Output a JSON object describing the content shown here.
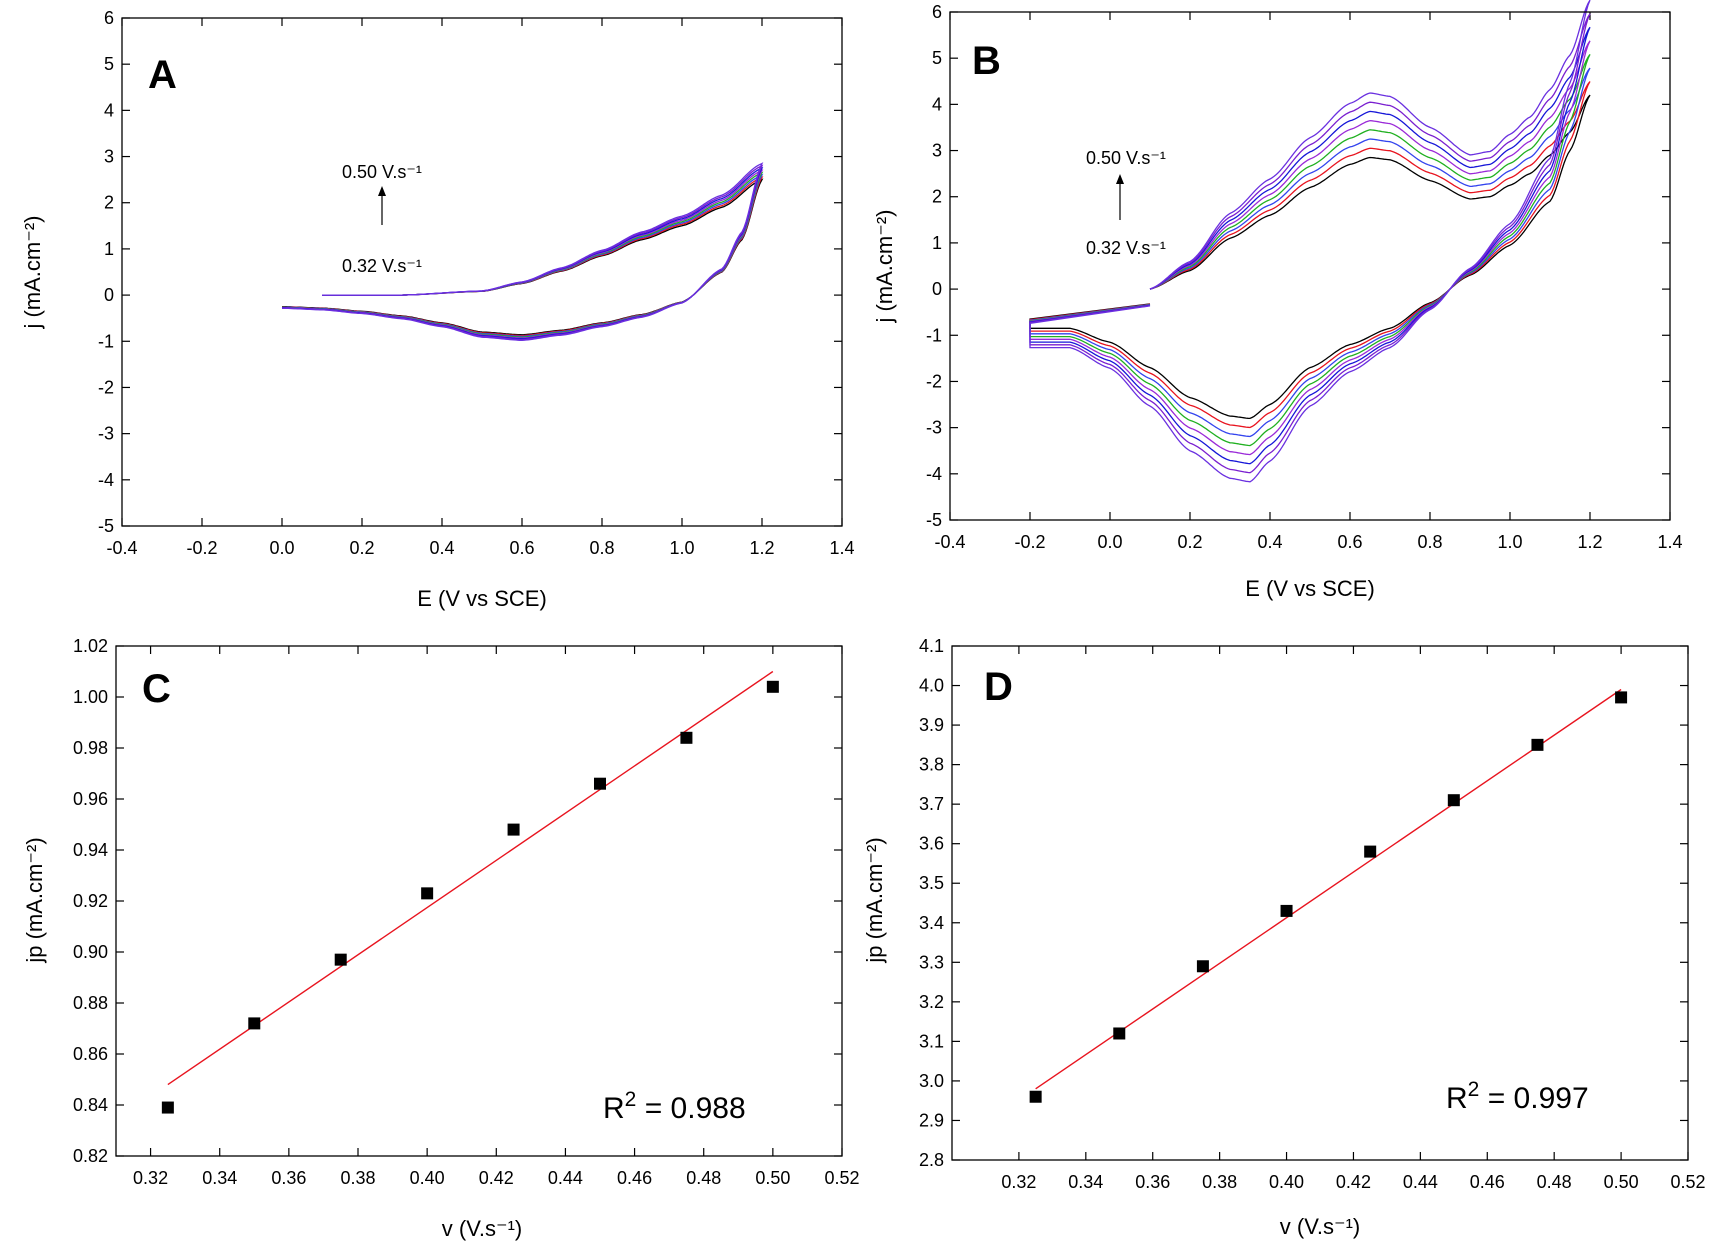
{
  "chart_data": [
    {
      "id": "A",
      "type": "line",
      "panel_label": "A",
      "xlabel": "E (V vs SCE)",
      "ylabel": "j (mA.cm⁻²)",
      "xlim": [
        -0.4,
        1.4
      ],
      "ylim": [
        -5,
        6
      ],
      "xticks": [
        -0.4,
        -0.2,
        0.0,
        0.2,
        0.4,
        0.6,
        0.8,
        1.0,
        1.2,
        1.4
      ],
      "yticks": [
        -5,
        -4,
        -3,
        -2,
        -1,
        0,
        1,
        2,
        3,
        4,
        5,
        6
      ],
      "xtick_decimals": 1,
      "ytick_decimals": 0,
      "annotation_top": "0.50 V.s⁻¹",
      "annotation_bottom": "0.32 V.s⁻¹",
      "series_colors": [
        "#000000",
        "#e8141f",
        "#3344ee",
        "#20b020",
        "#9a2ad8",
        "#1616d8",
        "#7a1fd0",
        "#6a30e0"
      ],
      "voltammogram": {
        "start": 0.1,
        "vertex": 1.2,
        "end": 0.0,
        "anodic": [
          [
            0.1,
            0.0
          ],
          [
            0.3,
            0.0
          ],
          [
            0.5,
            0.08
          ],
          [
            0.6,
            0.25
          ],
          [
            0.7,
            0.52
          ],
          [
            0.8,
            0.85
          ],
          [
            0.9,
            1.2
          ],
          [
            1.0,
            1.5
          ],
          [
            1.1,
            1.9
          ],
          [
            1.2,
            2.5
          ]
        ],
        "cathodic": [
          [
            1.2,
            2.5
          ],
          [
            1.15,
            1.2
          ],
          [
            1.1,
            0.5
          ],
          [
            1.0,
            -0.15
          ],
          [
            0.9,
            -0.42
          ],
          [
            0.8,
            -0.6
          ],
          [
            0.7,
            -0.76
          ],
          [
            0.6,
            -0.86
          ],
          [
            0.5,
            -0.8
          ],
          [
            0.4,
            -0.6
          ],
          [
            0.3,
            -0.45
          ],
          [
            0.2,
            -0.35
          ],
          [
            0.1,
            -0.28
          ],
          [
            0.0,
            -0.25
          ]
        ],
        "amplitude_step": 0.02
      }
    },
    {
      "id": "B",
      "type": "line",
      "panel_label": "B",
      "xlabel": "E (V vs SCE)",
      "ylabel": "j (mA.cm⁻²)",
      "xlim": [
        -0.4,
        1.4
      ],
      "ylim": [
        -5,
        6
      ],
      "xticks": [
        -0.4,
        -0.2,
        0.0,
        0.2,
        0.4,
        0.6,
        0.8,
        1.0,
        1.2,
        1.4
      ],
      "yticks": [
        -5,
        -4,
        -3,
        -2,
        -1,
        0,
        1,
        2,
        3,
        4,
        5,
        6
      ],
      "xtick_decimals": 1,
      "ytick_decimals": 0,
      "annotation_top": "0.50 V.s⁻¹",
      "annotation_bottom": "0.32 V.s⁻¹",
      "series_colors": [
        "#000000",
        "#e8141f",
        "#3344ee",
        "#20b020",
        "#9a2ad8",
        "#1616d8",
        "#7a1fd0",
        "#6a30e0"
      ],
      "voltammogram": {
        "start": 0.1,
        "vertex": 1.2,
        "end": -0.2,
        "anodic": [
          [
            0.1,
            0.0
          ],
          [
            0.2,
            0.4
          ],
          [
            0.3,
            1.1
          ],
          [
            0.4,
            1.6
          ],
          [
            0.5,
            2.2
          ],
          [
            0.6,
            2.7
          ],
          [
            0.65,
            2.85
          ],
          [
            0.7,
            2.8
          ],
          [
            0.8,
            2.35
          ],
          [
            0.9,
            1.95
          ],
          [
            0.95,
            2.0
          ],
          [
            1.0,
            2.25
          ],
          [
            1.05,
            2.5
          ],
          [
            1.1,
            2.9
          ],
          [
            1.15,
            3.4
          ],
          [
            1.2,
            4.2
          ]
        ],
        "cathodic": [
          [
            1.2,
            4.2
          ],
          [
            1.15,
            3.0
          ],
          [
            1.1,
            1.9
          ],
          [
            1.0,
            0.95
          ],
          [
            0.9,
            0.3
          ],
          [
            0.8,
            -0.3
          ],
          [
            0.7,
            -0.85
          ],
          [
            0.6,
            -1.2
          ],
          [
            0.5,
            -1.7
          ],
          [
            0.4,
            -2.5
          ],
          [
            0.35,
            -2.8
          ],
          [
            0.3,
            -2.75
          ],
          [
            0.2,
            -2.35
          ],
          [
            0.1,
            -1.7
          ],
          [
            0.0,
            -1.15
          ],
          [
            -0.1,
            -0.85
          ],
          [
            -0.2,
            -0.85
          ]
        ],
        "cathodic_tail": [
          [
            -0.2,
            -0.65
          ],
          [
            0.1,
            -0.32
          ]
        ],
        "amplitude_step": 0.07
      }
    },
    {
      "id": "C",
      "type": "scatter",
      "panel_label": "C",
      "xlabel": "v (V.s⁻¹)",
      "ylabel": "jp (mA.cm⁻²)",
      "xlim": [
        0.31,
        0.52
      ],
      "ylim": [
        0.82,
        1.02
      ],
      "xticks": [
        0.32,
        0.34,
        0.36,
        0.38,
        0.4,
        0.42,
        0.44,
        0.46,
        0.48,
        0.5,
        0.52
      ],
      "yticks": [
        0.82,
        0.84,
        0.86,
        0.88,
        0.9,
        0.92,
        0.94,
        0.96,
        0.98,
        1.0,
        1.02
      ],
      "xtick_decimals": 2,
      "ytick_decimals": 2,
      "x": [
        0.325,
        0.35,
        0.375,
        0.4,
        0.425,
        0.45,
        0.475,
        0.5
      ],
      "y": [
        0.839,
        0.872,
        0.897,
        0.923,
        0.948,
        0.966,
        0.984,
        1.004
      ],
      "fit_line": [
        [
          0.325,
          0.848
        ],
        [
          0.5,
          1.01
        ]
      ],
      "fit_color": "#e8141f",
      "r2_prefix": "R",
      "r2_sup": "2",
      "r2_value": " = 0.988"
    },
    {
      "id": "D",
      "type": "scatter",
      "panel_label": "D",
      "xlabel": "v (V.s⁻¹)",
      "ylabel": "jp (mA.cm⁻²)",
      "xlim": [
        0.3,
        0.52
      ],
      "ylim": [
        2.8,
        4.1
      ],
      "xticks": [
        0.32,
        0.34,
        0.36,
        0.38,
        0.4,
        0.42,
        0.44,
        0.46,
        0.48,
        0.5,
        0.52
      ],
      "yticks": [
        2.8,
        2.9,
        3.0,
        3.1,
        3.2,
        3.3,
        3.4,
        3.5,
        3.6,
        3.7,
        3.8,
        3.9,
        4.0,
        4.1
      ],
      "xtick_decimals": 2,
      "ytick_decimals": 1,
      "x": [
        0.325,
        0.35,
        0.375,
        0.4,
        0.425,
        0.45,
        0.475,
        0.5
      ],
      "y": [
        2.96,
        3.12,
        3.29,
        3.43,
        3.58,
        3.71,
        3.85,
        3.97
      ],
      "fit_line": [
        [
          0.325,
          2.98
        ],
        [
          0.5,
          3.99
        ]
      ],
      "fit_color": "#e8141f",
      "r2_prefix": "R",
      "r2_sup": "2",
      "r2_value": " = 0.997"
    }
  ]
}
